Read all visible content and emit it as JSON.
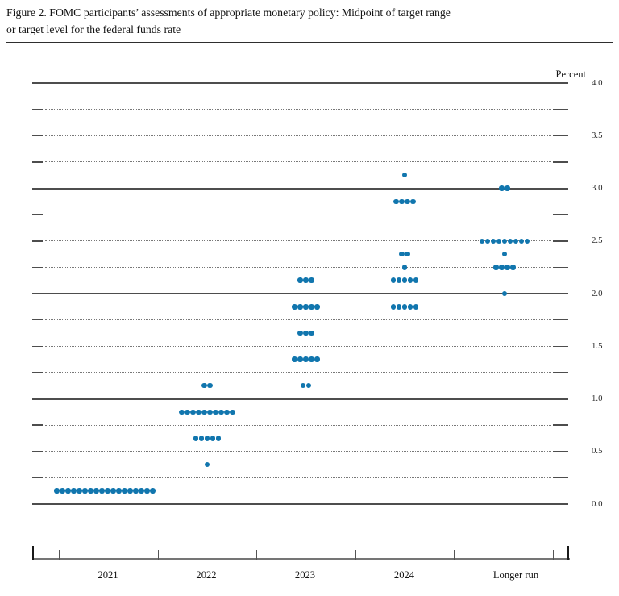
{
  "document": {
    "figure_caption": "Figure 2.  FOMC participants’ assessments of appropriate monetary policy: Midpoint of target range or target level for the federal funds rate",
    "caption_lines": [
      "Figure 2.  FOMC participants’ assessments of appropriate monetary policy:  Midpoint of target range",
      "or target level for the federal funds rate"
    ]
  },
  "chart_data": {
    "type": "scatter",
    "variant": "fomc-dot-plot",
    "title": "FOMC participants’ assessments of appropriate monetary policy: Midpoint of target range or target level for the federal funds rate",
    "unit_label": "Percent",
    "xlabel": "",
    "ylabel": "Percent",
    "ylim": [
      0.0,
      4.0
    ],
    "y_gridline_step": 0.25,
    "y_ticklabel_step": 0.5,
    "y_tick_labels": [
      "4.0",
      "3.5",
      "3.0",
      "2.5",
      "2.0",
      "1.5",
      "1.0",
      "0.5",
      "0.0"
    ],
    "grid": "dotted gridlines every 0.25 percent, solid gridlines at whole percents",
    "legend": "none",
    "categories": [
      "2021",
      "2022",
      "2023",
      "2024",
      "Longer run"
    ],
    "series": [
      {
        "category": "2021",
        "dots": [
          {
            "rate": 0.125,
            "count": 18
          }
        ]
      },
      {
        "category": "2022",
        "dots": [
          {
            "rate": 1.125,
            "count": 2
          },
          {
            "rate": 0.875,
            "count": 10
          },
          {
            "rate": 0.625,
            "count": 5
          },
          {
            "rate": 0.375,
            "count": 1
          }
        ]
      },
      {
        "category": "2023",
        "dots": [
          {
            "rate": 2.125,
            "count": 3
          },
          {
            "rate": 1.875,
            "count": 5
          },
          {
            "rate": 1.625,
            "count": 3
          },
          {
            "rate": 1.375,
            "count": 5
          },
          {
            "rate": 1.125,
            "count": 2
          }
        ]
      },
      {
        "category": "2024",
        "dots": [
          {
            "rate": 3.125,
            "count": 1
          },
          {
            "rate": 2.875,
            "count": 4
          },
          {
            "rate": 2.375,
            "count": 2
          },
          {
            "rate": 2.25,
            "count": 1
          },
          {
            "rate": 2.125,
            "count": 5
          },
          {
            "rate": 1.875,
            "count": 5
          }
        ]
      },
      {
        "category": "Longer run",
        "dots": [
          {
            "rate": 3.0,
            "count": 2
          },
          {
            "rate": 2.5,
            "count": 9
          },
          {
            "rate": 2.375,
            "count": 1
          },
          {
            "rate": 2.25,
            "count": 4
          },
          {
            "rate": 2.0,
            "count": 1
          }
        ]
      }
    ],
    "colors": {
      "dot": "#1176ae",
      "solid_gridline": "#4d4d4d",
      "dotted_gridline": "#787878",
      "axis_line": "#757575",
      "end_tick": "#1a1a1a",
      "inner_tick": "#555555",
      "text": "#141414"
    }
  }
}
